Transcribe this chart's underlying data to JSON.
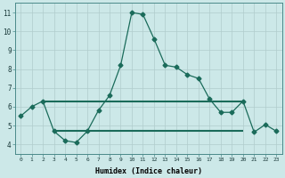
{
  "xlabel": "Humidex (Indice chaleur)",
  "x_values": [
    0,
    1,
    2,
    3,
    4,
    5,
    6,
    7,
    8,
    9,
    10,
    11,
    12,
    13,
    14,
    15,
    16,
    17,
    18,
    19,
    20,
    21,
    22,
    23
  ],
  "y_curve": [
    5.5,
    6.0,
    6.3,
    4.7,
    4.2,
    4.1,
    4.7,
    5.8,
    6.6,
    8.2,
    11.0,
    10.9,
    9.6,
    8.2,
    8.1,
    7.7,
    7.5,
    6.4,
    5.7,
    5.7,
    6.3,
    4.65,
    5.05,
    4.7
  ],
  "line1_x": [
    2,
    20
  ],
  "line1_y": [
    6.3,
    6.3
  ],
  "line2_x": [
    3,
    20
  ],
  "line2_y": [
    4.7,
    4.7
  ],
  "ylim": [
    3.5,
    11.5
  ],
  "xlim": [
    -0.5,
    23.5
  ],
  "curve_color": "#1a6b5a",
  "line_color": "#1a6b5a",
  "bg_color": "#cce8e8",
  "grid_color": "#b0cccc",
  "markersize": 2.5,
  "curve_linewidth": 0.9,
  "line_linewidth": 1.5,
  "yticks": [
    4,
    5,
    6,
    7,
    8,
    9,
    10,
    11
  ],
  "xticks": [
    0,
    1,
    2,
    3,
    4,
    5,
    6,
    7,
    8,
    9,
    10,
    11,
    12,
    13,
    14,
    15,
    16,
    17,
    18,
    19,
    20,
    21,
    22,
    23
  ]
}
